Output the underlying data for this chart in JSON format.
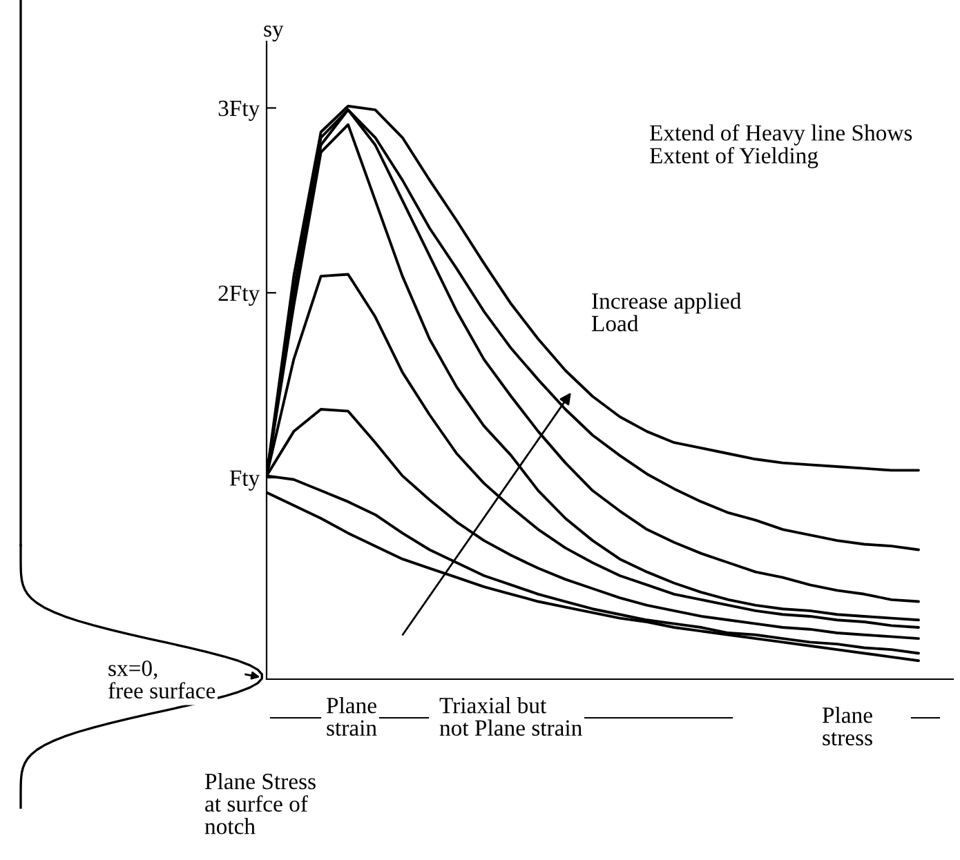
{
  "chart_data": {
    "type": "line",
    "ylabel": "sy",
    "categories": [
      null,
      null,
      null,
      null,
      null,
      null,
      null,
      null,
      null,
      null,
      null,
      null,
      null,
      null,
      null,
      null,
      null,
      null,
      null,
      null,
      null,
      null,
      null,
      null,
      null
    ],
    "series": [
      {
        "color": "#000000",
        "values": [
          0.92,
          0.85,
          0.78,
          0.7,
          0.63,
          0.56,
          0.51,
          0.46,
          0.41,
          0.37,
          0.33,
          0.3,
          0.27,
          0.24,
          0.22,
          0.19,
          0.17,
          0.15,
          0.13,
          0.11,
          0.09,
          0.07,
          0.05,
          0.03,
          0.01
        ]
      },
      {
        "color": "#000000",
        "values": [
          1.01,
          0.99,
          0.93,
          0.87,
          0.8,
          0.7,
          0.61,
          0.54,
          0.47,
          0.42,
          0.37,
          0.33,
          0.29,
          0.26,
          0.23,
          0.21,
          0.19,
          0.16,
          0.15,
          0.13,
          0.11,
          0.1,
          0.08,
          0.07,
          0.05
        ]
      },
      {
        "color": "#000000",
        "values": [
          1.01,
          1.25,
          1.37,
          1.36,
          1.19,
          1.01,
          0.88,
          0.76,
          0.66,
          0.58,
          0.51,
          0.45,
          0.4,
          0.35,
          0.31,
          0.28,
          0.25,
          0.23,
          0.21,
          0.19,
          0.18,
          0.16,
          0.15,
          0.14,
          0.13
        ]
      },
      {
        "color": "#000000",
        "values": [
          1.01,
          1.64,
          2.09,
          2.1,
          1.87,
          1.57,
          1.34,
          1.13,
          0.97,
          0.84,
          0.72,
          0.62,
          0.54,
          0.47,
          0.42,
          0.37,
          0.34,
          0.31,
          0.28,
          0.26,
          0.25,
          0.23,
          0.22,
          0.2,
          0.19
        ]
      },
      {
        "color": "#000000",
        "values": [
          1.01,
          1.93,
          2.76,
          2.91,
          2.5,
          2.09,
          1.75,
          1.49,
          1.28,
          1.12,
          0.93,
          0.78,
          0.66,
          0.56,
          0.49,
          0.43,
          0.38,
          0.34,
          0.31,
          0.29,
          0.28,
          0.26,
          0.25,
          0.24,
          0.23
        ]
      },
      {
        "color": "#000000",
        "values": [
          1.01,
          1.97,
          2.8,
          2.99,
          2.8,
          2.5,
          2.2,
          1.9,
          1.64,
          1.44,
          1.25,
          1.08,
          0.93,
          0.82,
          0.72,
          0.65,
          0.59,
          0.54,
          0.49,
          0.46,
          0.42,
          0.39,
          0.37,
          0.34,
          0.33
        ]
      },
      {
        "color": "#000000",
        "values": [
          1.01,
          2.01,
          2.84,
          2.99,
          2.84,
          2.61,
          2.35,
          2.13,
          1.9,
          1.7,
          1.53,
          1.37,
          1.23,
          1.12,
          1.02,
          0.94,
          0.87,
          0.81,
          0.77,
          0.72,
          0.69,
          0.66,
          0.64,
          0.63,
          0.61
        ]
      },
      {
        "color": "#000000",
        "values": [
          1.01,
          2.09,
          2.87,
          3.01,
          2.99,
          2.84,
          2.61,
          2.39,
          2.16,
          1.94,
          1.75,
          1.58,
          1.44,
          1.33,
          1.25,
          1.19,
          1.16,
          1.13,
          1.1,
          1.08,
          1.07,
          1.06,
          1.05,
          1.04,
          1.04
        ]
      }
    ],
    "ylim": [
      -0.09,
      3.36
    ],
    "yticks": [
      {
        "value": 1,
        "label": "Fty"
      },
      {
        "value": 2,
        "label": "2Fty"
      },
      {
        "value": 3,
        "label": "3Fty"
      }
    ],
    "grid": false,
    "legend": false,
    "annotations": [
      "Extend of Heavy line Shows\nExtent of Yielding",
      "Increase applied\nLoad",
      "sx=0,\nfree surface",
      "Plane\nstrain",
      "Triaxial but\nnot Plane strain",
      "Plane\nstress",
      "Plane Stress\nat surfce of\nnotch"
    ]
  }
}
